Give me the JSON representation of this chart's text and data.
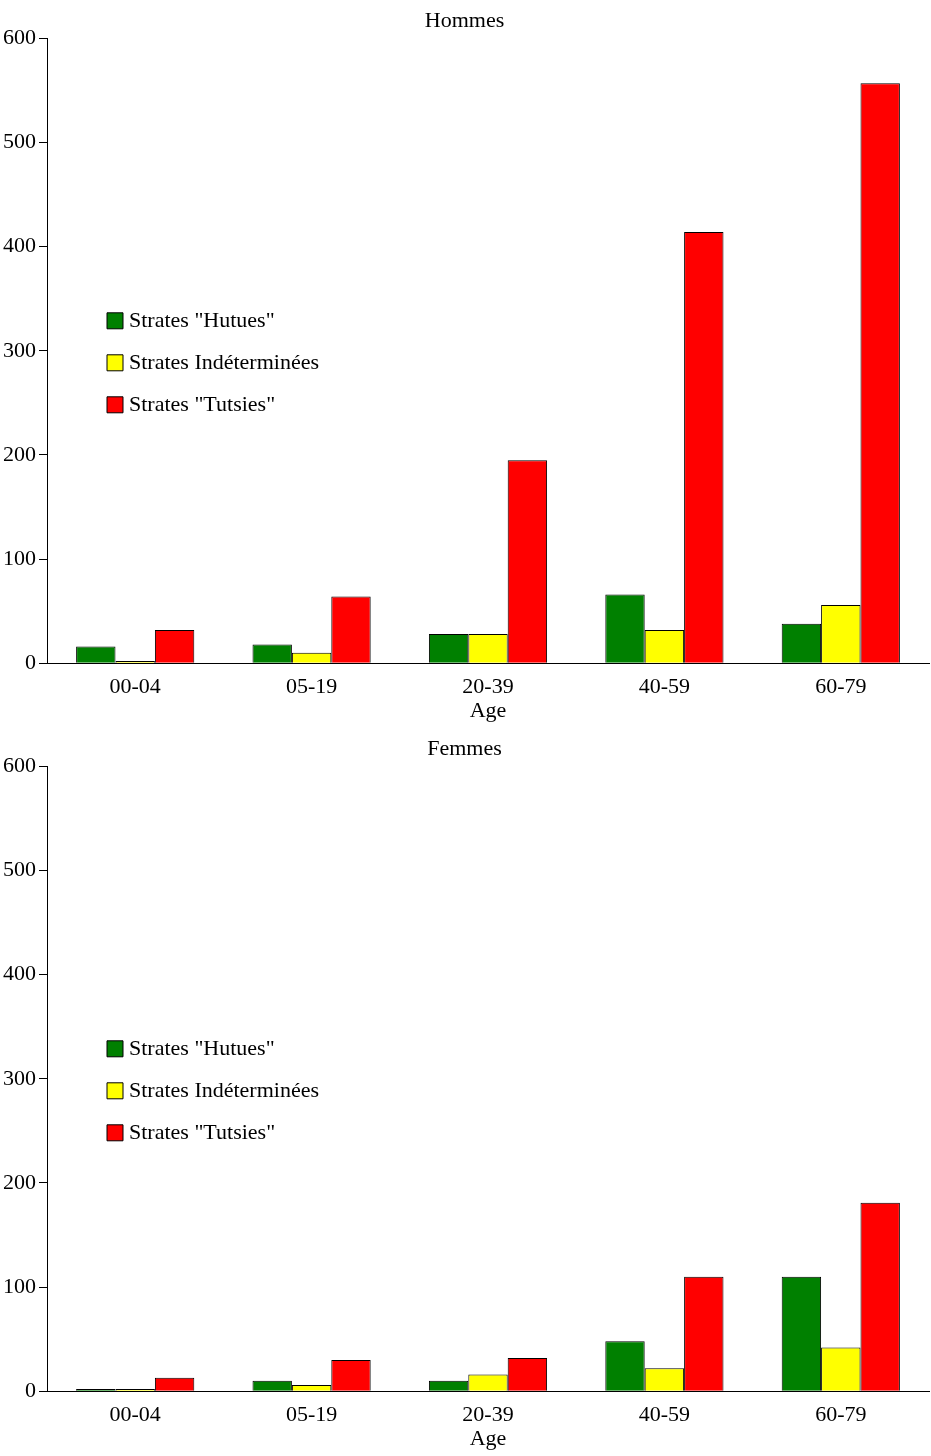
{
  "chart_data": [
    {
      "type": "bar",
      "title": "Hommes",
      "xlabel": "Age",
      "categories": [
        "00-04",
        "05-19",
        "20-39",
        "40-59",
        "60-79"
      ],
      "series": [
        {
          "name": "Strates \"Hutues\"",
          "color": "#008000",
          "values": [
            16,
            18,
            28,
            66,
            38
          ]
        },
        {
          "name": "Strates Indéterminées",
          "color": "#ffff00",
          "values": [
            2,
            10,
            28,
            32,
            56
          ]
        },
        {
          "name": "Strates \"Tutsies\"",
          "color": "#ff0000",
          "values": [
            32,
            64,
            195,
            414,
            557
          ]
        }
      ],
      "ylim": [
        0,
        600
      ],
      "yticks": [
        0,
        100,
        200,
        300,
        400,
        500,
        600
      ],
      "grid": false,
      "legend": "left"
    },
    {
      "type": "bar",
      "title": "Femmes",
      "xlabel": "Age",
      "categories": [
        "00-04",
        "05-19",
        "20-39",
        "40-59",
        "60-79"
      ],
      "series": [
        {
          "name": "Strates \"Hutues\"",
          "color": "#008000",
          "values": [
            2,
            10,
            10,
            48,
            110
          ]
        },
        {
          "name": "Strates Indéterminées",
          "color": "#ffff00",
          "values": [
            2,
            6,
            16,
            22,
            42
          ]
        },
        {
          "name": "Strates \"Tutsies\"",
          "color": "#ff0000",
          "values": [
            13,
            30,
            32,
            110,
            181
          ]
        }
      ],
      "ylim": [
        0,
        600
      ],
      "yticks": [
        0,
        100,
        200,
        300,
        400,
        500,
        600
      ],
      "grid": false,
      "legend": "left"
    }
  ]
}
